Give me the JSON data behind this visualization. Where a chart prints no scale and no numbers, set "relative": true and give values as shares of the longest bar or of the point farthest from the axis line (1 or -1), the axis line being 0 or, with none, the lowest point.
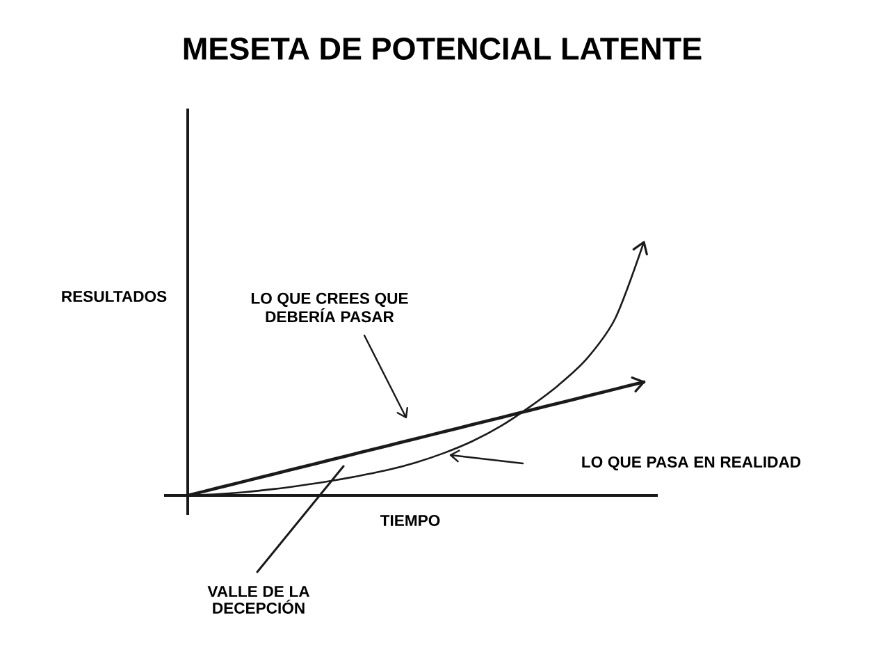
{
  "chart_data": {
    "type": "line",
    "title": "MESETA DE POTENCIAL LATENTE",
    "xlabel": "TIEMPO",
    "ylabel": "RESULTADOS",
    "relative": true,
    "categories": [
      null,
      null,
      null,
      null,
      null,
      null,
      null,
      null,
      null,
      null,
      null,
      null,
      null,
      null,
      null,
      null,
      null
    ],
    "series": [
      {
        "color": "#1a1a1a",
        "values": [
          0,
          0.028,
          0.056,
          0.084,
          0.112,
          0.14,
          0.168,
          0.196,
          0.224,
          0.252,
          0.28,
          0.308,
          0.336,
          0.364,
          0.392,
          0.42,
          0.448
        ]
      },
      {
        "color": "#1a1a1a",
        "values": [
          0,
          0.005,
          0.013,
          0.025,
          0.04,
          0.057,
          0.077,
          0.1,
          0.13,
          0.168,
          0.215,
          0.275,
          0.35,
          0.435,
          0.54,
          0.7,
          1
        ]
      }
    ],
    "annotations": [
      "LO QUE CREES QUE DEBERÍA PASAR",
      "LO QUE PASA EN REALIDAD",
      "VALLE DE LA DECEPCIÓN"
    ]
  }
}
